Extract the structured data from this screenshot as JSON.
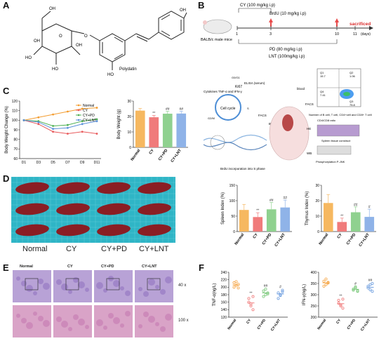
{
  "panels": {
    "A": "A",
    "B": "B",
    "C": "C",
    "D": "D",
    "E": "E",
    "F": "F"
  },
  "panel_a": {
    "compound_name": "Polydatin",
    "atoms": [
      "OH",
      "OH",
      "OH",
      "HO",
      "HO",
      "O",
      "O",
      "OH",
      "HO"
    ]
  },
  "panel_b": {
    "mouse_label": "BALB/c male mice",
    "cy_dose": "CY (100 mg/kg i.p)",
    "brdu_dose": "BrdU (10 mg/kg i.p)",
    "sacrificed": "sacrificed",
    "days_unit": "(days)",
    "timeline_ticks": [
      "1",
      "3",
      "10",
      "11"
    ],
    "pd_dose": "PD (80 mg/kg i.p)",
    "lnt_dose": "LNT (100mg/kg i.p)",
    "elisa": "ELISA (serum)",
    "blood": "blood",
    "cytokines": "Cytokines TNF-α and IFN-γ",
    "ki67": "Ki67",
    "cell_cycle": "Cell cycle",
    "facs": "FACS",
    "brdu": "BrdU",
    "brdu_incorp": "BrdU incorporation into S phase",
    "he": "HE",
    "wb": "WB",
    "cell_numbers": "Number of B cell, T cell, CD4+cell and CD8+ T cell",
    "ratio": "CD4/CD8 ratio",
    "spleen_construct": "Spleen tissue construct",
    "pjnk": "Phosphorylation P-JNK",
    "phases": [
      "G0/G1",
      "S",
      "G2/M"
    ],
    "quadrants": [
      "Q1",
      "Q2",
      "Q3",
      "Q4"
    ],
    "quadrant_values": [
      "15.7",
      "1.06",
      "7.41",
      "75.8"
    ]
  },
  "panel_c_line": {
    "type": "line",
    "ylabel": "Body Weight Change (%)",
    "x": [
      "D1",
      "D3",
      "D5",
      "D7",
      "D9",
      "D11"
    ],
    "ylim": [
      60,
      120
    ],
    "yticks": [
      "120",
      "110",
      "100",
      "90",
      "80",
      "70",
      "60"
    ],
    "series": [
      {
        "name": "Normal",
        "values": [
          100,
          103,
          106,
          109,
          112,
          113
        ],
        "color": "#f39c2f"
      },
      {
        "name": "CY",
        "values": [
          100,
          96,
          88,
          86,
          88,
          86
        ],
        "color": "#e8595b"
      },
      {
        "name": "CY+PD",
        "values": [
          100,
          99,
          94,
          95,
          99,
          101
        ],
        "color": "#4caf50"
      },
      {
        "name": "CY+LNT",
        "values": [
          100,
          98,
          91,
          92,
          96,
          99
        ],
        "color": "#5b8fd9"
      }
    ]
  },
  "panel_c_bar": {
    "type": "bar",
    "ylabel": "Body Weight (g)",
    "categories": [
      "Normal",
      "CY",
      "CY+PD",
      "CY+LNT"
    ],
    "values": [
      23.8,
      19.5,
      21.8,
      21.9
    ],
    "errors": [
      1.4,
      1.2,
      1.6,
      1.5
    ],
    "ylim": [
      0,
      30
    ],
    "yticks": [
      "30",
      "20",
      "10",
      "0"
    ],
    "annotations": [
      "",
      "**",
      "##",
      "##"
    ],
    "colors": [
      "#f6b860",
      "#f07b7b",
      "#8fd18f",
      "#8fb3e8"
    ]
  },
  "panel_d": {
    "groups": [
      "Normal",
      "CY",
      "CY+PD",
      "CY+LNT"
    ]
  },
  "panel_d_spleen": {
    "type": "bar",
    "ylabel": "Spleen Index (%)",
    "categories": [
      "Normal",
      "CY",
      "CY+PD",
      "CY+LNT"
    ],
    "values": [
      70,
      47,
      72,
      78
    ],
    "errors": [
      18,
      14,
      22,
      24
    ],
    "ylim": [
      0,
      150
    ],
    "yticks": [
      "150",
      "100",
      "50",
      "0"
    ],
    "annotations": [
      "",
      "**",
      "##",
      "##"
    ],
    "colors": [
      "#f6b860",
      "#f07b7b",
      "#8fd18f",
      "#8fb3e8"
    ]
  },
  "panel_d_thymus": {
    "type": "bar",
    "ylabel": "Thymus Index (%)",
    "categories": [
      "Normal",
      "CY",
      "CY+PD",
      "CY+LNT"
    ],
    "values": [
      18.5,
      6.2,
      12.5,
      9.5
    ],
    "errors": [
      5.5,
      2.5,
      3.5,
      5.0
    ],
    "ylim": [
      0,
      30
    ],
    "yticks": [
      "30",
      "20",
      "10",
      "0"
    ],
    "annotations": [
      "",
      "**",
      "##",
      "#"
    ],
    "colors": [
      "#f6b860",
      "#f07b7b",
      "#8fd18f",
      "#8fb3e8"
    ]
  },
  "panel_e": {
    "groups": [
      "Normal",
      "CY",
      "CY+PD",
      "CY+LNT"
    ],
    "magnifications": [
      "40 x",
      "100 x"
    ]
  },
  "panel_f_tnf": {
    "type": "scatter",
    "ylabel": "TNF-α(ng/L)",
    "categories": [
      "Normal",
      "CY",
      "CY+PD",
      "CY+LNT"
    ],
    "ylim": [
      120,
      240
    ],
    "yticks": [
      "240",
      "220",
      "200",
      "180",
      "160",
      "140",
      "120"
    ],
    "points": [
      [
        212,
        205,
        198,
        200,
        215,
        208
      ],
      [
        170,
        150,
        140,
        160,
        155,
        175
      ],
      [
        190,
        180,
        185,
        175,
        195,
        182
      ],
      [
        185,
        178,
        188,
        170,
        180,
        192
      ]
    ],
    "means": [
      206,
      158,
      185,
      182
    ],
    "annotations": [
      "",
      "**",
      "##",
      "#"
    ],
    "colors": [
      "#f6a84a",
      "#f07b7b",
      "#7cc97c",
      "#6f9fe0"
    ]
  },
  "panel_f_ifn": {
    "type": "scatter",
    "ylabel": "IFN-γ(ng/L)",
    "categories": [
      "Normal",
      "CY",
      "CY+PD",
      "CY+LNT"
    ],
    "ylim": [
      200,
      400
    ],
    "yticks": [
      "400",
      "350",
      "300",
      "250",
      "200"
    ],
    "points": [
      [
        360,
        345,
        352,
        338,
        370,
        355
      ],
      [
        275,
        255,
        240,
        262,
        250,
        280
      ],
      [
        325,
        330,
        315,
        320,
        335,
        318
      ],
      [
        330,
        345,
        315,
        338,
        322,
        350
      ]
    ],
    "means": [
      353,
      260,
      324,
      333
    ],
    "annotations": [
      "",
      "**",
      "#",
      "##"
    ],
    "colors": [
      "#f6a84a",
      "#f07b7b",
      "#7cc97c",
      "#6f9fe0"
    ]
  }
}
